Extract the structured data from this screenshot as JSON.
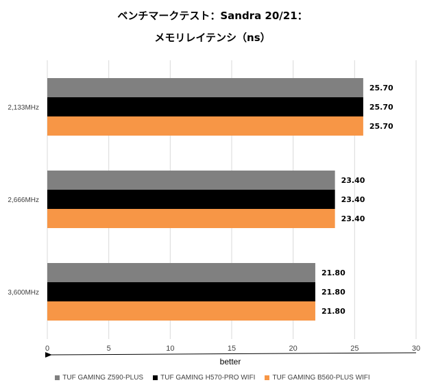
{
  "title_line1": "ベンチマークテスト：Sandra 20/21：",
  "title_line2": "メモリレイテンシ（ns）",
  "chart_data": {
    "type": "bar",
    "orientation": "horizontal",
    "categories": [
      "2,133MHz",
      "2,666MHz",
      "3,600MHz"
    ],
    "series": [
      {
        "name": "TUF GAMING Z590-PLUS",
        "color": "#808080",
        "values": [
          25.7,
          23.4,
          21.8
        ]
      },
      {
        "name": "TUF GAMING H570-PRO WIFI",
        "color": "#000000",
        "values": [
          25.7,
          23.4,
          21.8
        ]
      },
      {
        "name": "TUF GAMING B560-PLUS WIFI",
        "color": "#f79646",
        "values": [
          25.7,
          23.4,
          21.8
        ]
      }
    ],
    "xlim": [
      0,
      30
    ],
    "xticks": [
      0,
      5,
      10,
      15,
      20,
      25,
      30
    ],
    "value_format_decimals": 2,
    "annotation": "better",
    "grid": true,
    "legend_position": "bottom"
  }
}
